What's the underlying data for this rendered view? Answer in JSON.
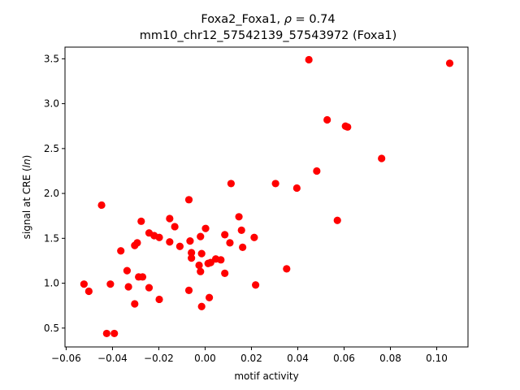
{
  "chart_data": {
    "type": "scatter",
    "title_line1_prefix": "Foxa2_Foxa1, ",
    "title_line1_rho": "ρ",
    "title_line1_suffix": " = 0.74",
    "title_line2": "mm10_chr12_57542139_57543972 (Foxa1)",
    "xlabel": "motif activity",
    "ylabel_prefix": "signal at CRE (",
    "ylabel_italic": "ln",
    "ylabel_suffix": ")",
    "xlim": [
      -0.0605,
      0.1135
    ],
    "ylim": [
      0.29,
      3.63
    ],
    "xticks": [
      -0.06,
      -0.04,
      -0.02,
      0.0,
      0.02,
      0.04,
      0.06,
      0.08,
      0.1
    ],
    "xtick_labels": [
      "−0.06",
      "−0.04",
      "−0.02",
      "0.00",
      "0.02",
      "0.04",
      "0.06",
      "0.08",
      "0.10"
    ],
    "yticks": [
      0.5,
      1.0,
      1.5,
      2.0,
      2.5,
      3.0,
      3.5
    ],
    "ytick_labels": [
      "0.5",
      "1.0",
      "1.5",
      "2.0",
      "2.5",
      "3.0",
      "3.5"
    ],
    "grid": false,
    "marker_color": "#ff0000",
    "points": [
      [
        -0.0523,
        0.99
      ],
      [
        -0.0502,
        0.91
      ],
      [
        -0.0447,
        1.87
      ],
      [
        -0.0425,
        0.44
      ],
      [
        -0.0409,
        0.99
      ],
      [
        -0.0392,
        0.44
      ],
      [
        -0.0364,
        1.36
      ],
      [
        -0.0337,
        1.14
      ],
      [
        -0.0331,
        0.96
      ],
      [
        -0.0304,
        1.42
      ],
      [
        -0.0304,
        0.77
      ],
      [
        -0.0293,
        1.45
      ],
      [
        -0.0287,
        1.07
      ],
      [
        -0.0276,
        1.69
      ],
      [
        -0.027,
        1.07
      ],
      [
        -0.0242,
        1.56
      ],
      [
        -0.0242,
        0.95
      ],
      [
        -0.022,
        1.53
      ],
      [
        -0.0198,
        1.51
      ],
      [
        -0.0198,
        0.82
      ],
      [
        -0.0153,
        1.72
      ],
      [
        -0.0153,
        1.46
      ],
      [
        -0.0131,
        1.63
      ],
      [
        -0.0109,
        1.41
      ],
      [
        -0.007,
        1.93
      ],
      [
        -0.007,
        0.92
      ],
      [
        -0.0065,
        1.47
      ],
      [
        -0.0059,
        1.34
      ],
      [
        -0.0059,
        1.28
      ],
      [
        -0.0026,
        1.2
      ],
      [
        -0.002,
        1.13
      ],
      [
        -0.002,
        1.52
      ],
      [
        -0.0015,
        1.33
      ],
      [
        -0.0015,
        0.74
      ],
      [
        0.0002,
        1.61
      ],
      [
        0.0013,
        1.22
      ],
      [
        0.0018,
        0.84
      ],
      [
        0.0024,
        1.23
      ],
      [
        0.0046,
        1.27
      ],
      [
        0.0068,
        1.26
      ],
      [
        0.0085,
        1.11
      ],
      [
        0.0085,
        1.54
      ],
      [
        0.0107,
        1.45
      ],
      [
        0.0112,
        2.11
      ],
      [
        0.0146,
        1.74
      ],
      [
        0.0157,
        1.59
      ],
      [
        0.0162,
        1.4
      ],
      [
        0.0212,
        1.51
      ],
      [
        0.0218,
        0.98
      ],
      [
        0.0304,
        2.11
      ],
      [
        0.0352,
        1.16
      ],
      [
        0.0396,
        2.06
      ],
      [
        0.0448,
        3.49
      ],
      [
        0.0482,
        2.25
      ],
      [
        0.0527,
        2.82
      ],
      [
        0.0571,
        1.7
      ],
      [
        0.0606,
        2.75
      ],
      [
        0.0615,
        2.74
      ],
      [
        0.0762,
        2.39
      ],
      [
        0.1056,
        3.45
      ]
    ]
  }
}
